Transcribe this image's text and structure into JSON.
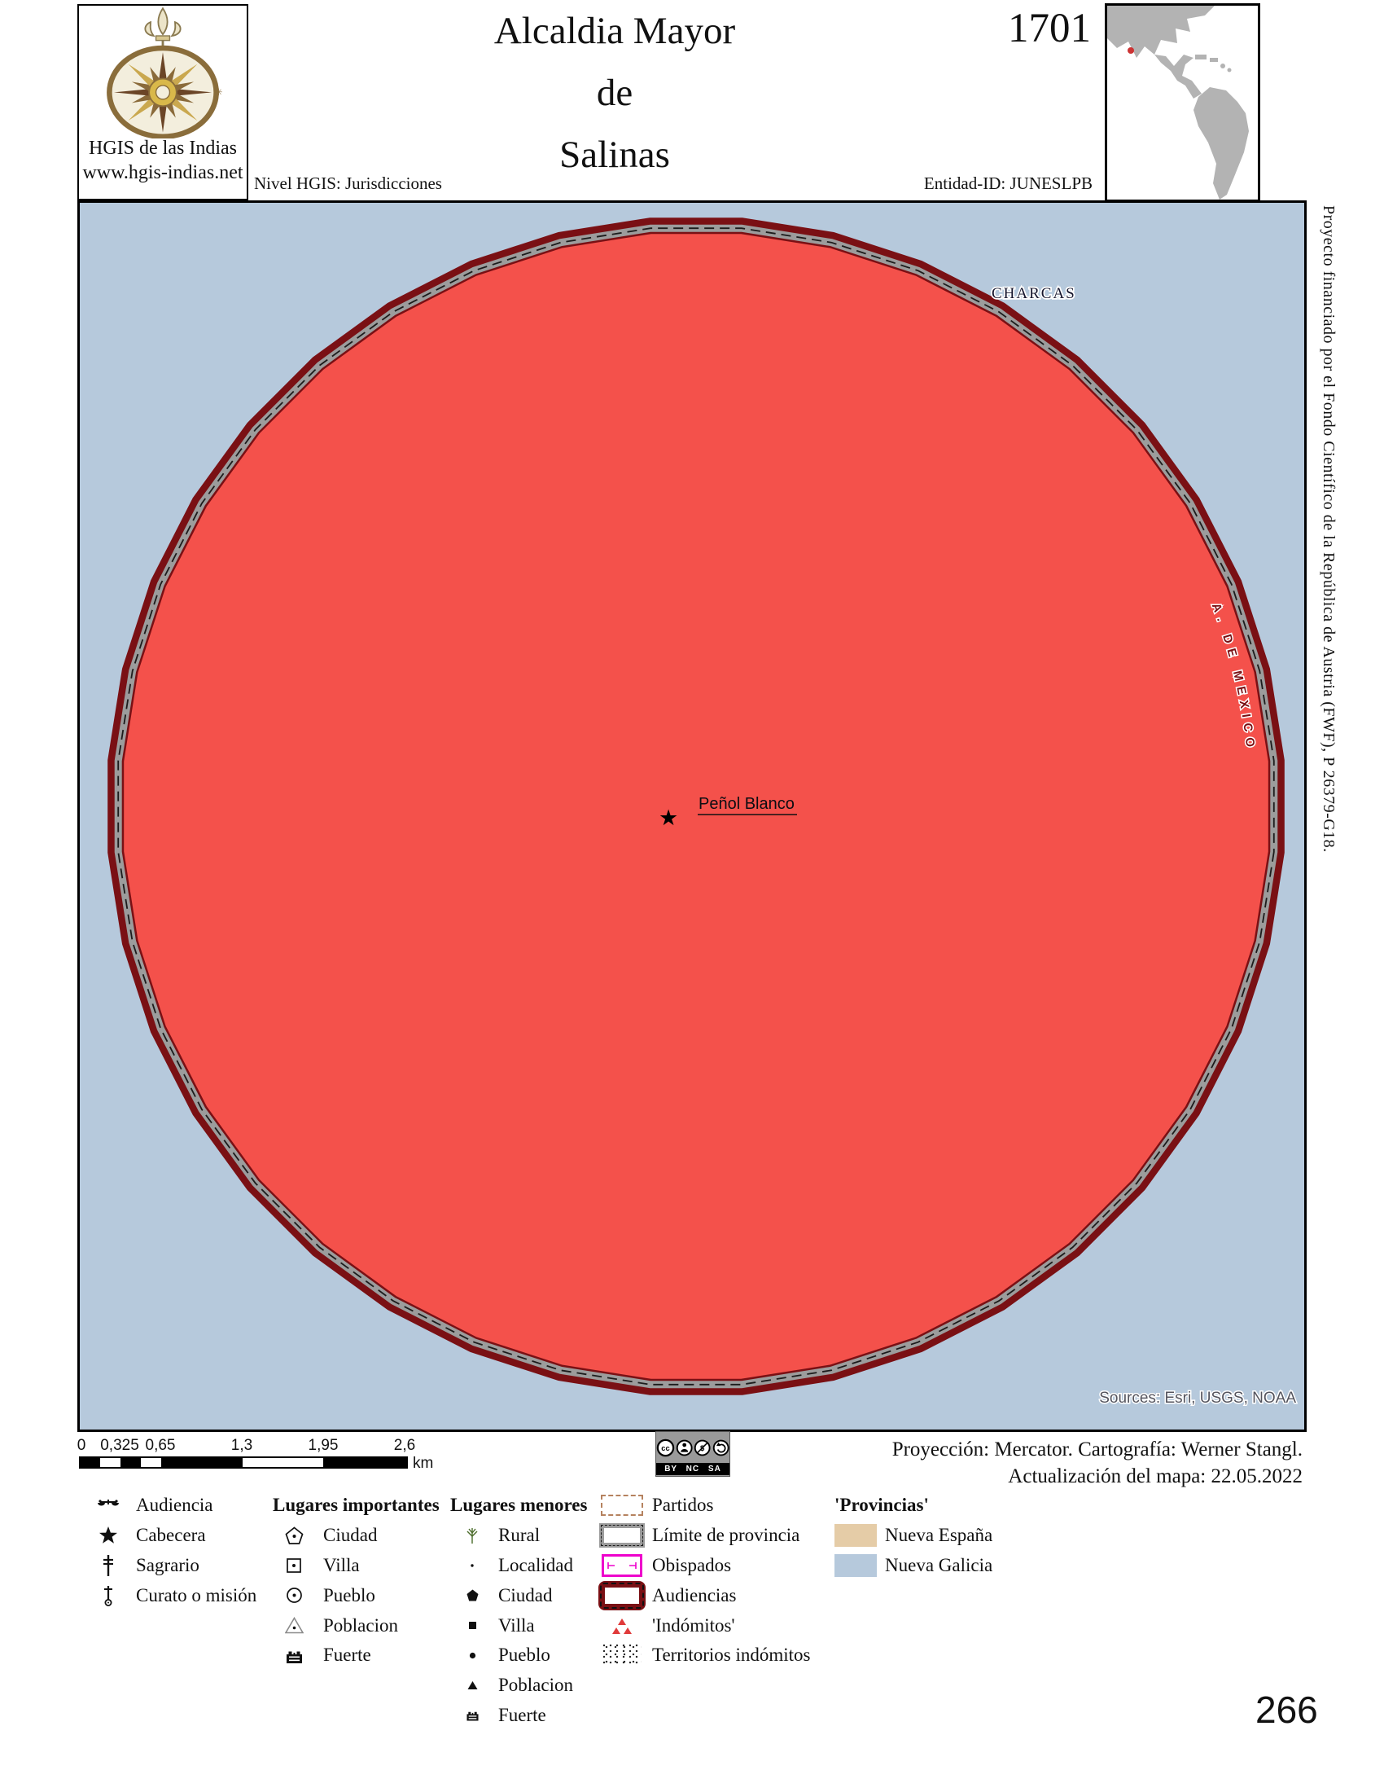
{
  "header": {
    "logo_title": "HGIS de las Indias",
    "logo_url": "www.hgis-indias.net",
    "logo_icon": "compass-rose",
    "title_lines": [
      "Alcaldia Mayor",
      "de",
      "Salinas"
    ],
    "year": "1701",
    "nivel": "Nivel HGIS: Jurisdicciones",
    "entity_id": "Entidad-ID: JUNESLPB"
  },
  "map": {
    "region_label": "CHARCAS",
    "cabecera_label": "Peñol Blanco",
    "cabecera_icon": "★",
    "audiencia_arc_label": "A. DE MEXICO",
    "sources": "Sources: Esri, USGS, NOAA",
    "fill_color": "#f4514b",
    "background_color": "#b6c9dc",
    "audiencia_border_color": "#7a1014",
    "province_border_color": "#9c9c9c"
  },
  "side_note": "Proyecto financiado por el Fondo Científico de la República de Austria (FWF),  P 26379-G18.",
  "scalebar": {
    "ticks": [
      "0",
      "0,325",
      "0,65",
      "1,3",
      "1,95",
      "2,6"
    ],
    "unit": "km"
  },
  "license": {
    "cc_glyph": "cc",
    "nc_glyph": "$",
    "caption": "BY NC SA"
  },
  "attribution": {
    "line1": "Proyección: Mercator. Cartografía: Werner Stangl.",
    "line2": "Actualización del mapa: 22.05.2022"
  },
  "legend": {
    "general": [
      {
        "icon": "scales-icon",
        "label": "Audiencia"
      },
      {
        "icon": "star-icon",
        "label": "Cabecera"
      },
      {
        "icon": "patriarchal-cross-icon",
        "label": "Sagrario"
      },
      {
        "icon": "cross-circle-icon",
        "label": "Curato o misión"
      }
    ],
    "important_header": "Lugares importantes",
    "important": [
      {
        "icon": "pentagon-dot-icon",
        "label": "Ciudad"
      },
      {
        "icon": "square-dot-icon",
        "label": "Villa"
      },
      {
        "icon": "circle-dot-icon",
        "label": "Pueblo"
      },
      {
        "icon": "triangle-dot-icon",
        "label": "Poblacion"
      },
      {
        "icon": "fort-icon",
        "label": "Fuerte"
      }
    ],
    "minor_header": "Lugares menores",
    "minor": [
      {
        "icon": "rural-sprout-icon",
        "label": "Rural"
      },
      {
        "icon": "small-dot-icon",
        "label": "Localidad"
      },
      {
        "icon": "pentagon-filled-icon",
        "label": "Ciudad"
      },
      {
        "icon": "square-filled-icon",
        "label": "Villa"
      },
      {
        "icon": "dot-filled-icon",
        "label": "Pueblo"
      },
      {
        "icon": "triangle-filled-icon",
        "label": "Poblacion"
      },
      {
        "icon": "fort-small-icon",
        "label": "Fuerte"
      }
    ],
    "boundaries": [
      {
        "swatch": "partidos-dashed-box",
        "color": "#b5825f",
        "label": "Partidos"
      },
      {
        "swatch": "province-limit-box",
        "color": "#9c9c9c",
        "label": "Límite de provincia"
      },
      {
        "swatch": "obispados-box",
        "color": "#ee00cc",
        "label": "Obispados"
      },
      {
        "swatch": "audiencias-box",
        "color": "#7a1014",
        "label": "Audiencias"
      },
      {
        "swatch": "indomitos-triangles",
        "color": "#e03a3a",
        "label": "'Indómitos'"
      },
      {
        "swatch": "stipple-pattern",
        "color": "#222222",
        "label": "Territorios indómitos"
      }
    ],
    "provincias_header": "'Provincias'",
    "provincias": [
      {
        "color": "#e5cca7",
        "label": "Nueva España"
      },
      {
        "color": "#b6c9dc",
        "label": "Nueva Galicia"
      }
    ]
  },
  "page_number": "266"
}
